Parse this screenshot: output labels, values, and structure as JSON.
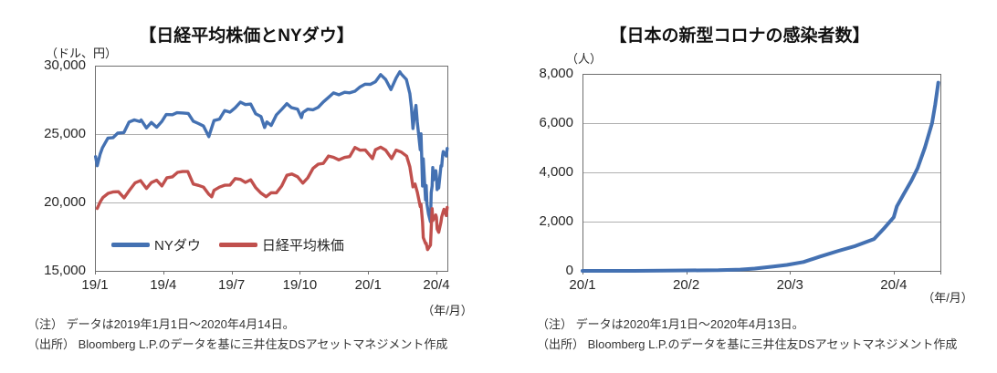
{
  "chart_data": [
    {
      "type": "line",
      "title": "【日経平均株価とNYダウ】",
      "unit_label": "（ドル、円）",
      "axis_unit_label": "（年/月）",
      "ylim": [
        15000,
        30000
      ],
      "y_tick_values": [
        30000,
        25000,
        20000,
        15000
      ],
      "y_tick_labels": [
        "30,000",
        "25,000",
        "20,000",
        "15,000"
      ],
      "gridline_values": [
        25000,
        20000
      ],
      "x_range": [
        0,
        15.48
      ],
      "x_tick_positions": [
        0,
        3,
        6,
        9,
        12,
        15
      ],
      "x_tick_labels": [
        "19/1",
        "19/4",
        "19/7",
        "19/10",
        "20/1",
        "20/4"
      ],
      "grid": true,
      "legend_position": "inside-bottom-left",
      "note": "（注） データは2019年1月1日～2020年4月14日。",
      "source": "（出所） Bloomberg L.P.のデータを基に三井住友DSアセットマネジメント作成",
      "series": [
        {
          "name": "NYダウ",
          "color": "#4471B2",
          "points": [
            [
              0.03,
              23346
            ],
            [
              0.1,
              22686
            ],
            [
              0.23,
              23531
            ],
            [
              0.33,
              23996
            ],
            [
              0.57,
              24706
            ],
            [
              0.8,
              24737
            ],
            [
              1.0,
              25064
            ],
            [
              1.27,
              25106
            ],
            [
              1.5,
              25883
            ],
            [
              1.73,
              26032
            ],
            [
              1.97,
              25916
            ],
            [
              2.03,
              26026
            ],
            [
              2.26,
              25450
            ],
            [
              2.48,
              25849
            ],
            [
              2.71,
              25502
            ],
            [
              2.94,
              25929
            ],
            [
              3.13,
              26425
            ],
            [
              3.4,
              26412
            ],
            [
              3.6,
              26560
            ],
            [
              3.87,
              26543
            ],
            [
              4.1,
              26505
            ],
            [
              4.32,
              25942
            ],
            [
              4.55,
              25764
            ],
            [
              4.77,
              25586
            ],
            [
              5.0,
              24815
            ],
            [
              5.23,
              25984
            ],
            [
              5.47,
              26090
            ],
            [
              5.7,
              26719
            ],
            [
              5.93,
              26600
            ],
            [
              6.16,
              26922
            ],
            [
              6.39,
              27332
            ],
            [
              6.61,
              27154
            ],
            [
              6.84,
              27192
            ],
            [
              7.06,
              26485
            ],
            [
              7.29,
              26287
            ],
            [
              7.45,
              25479
            ],
            [
              7.55,
              25886
            ],
            [
              7.74,
              25629
            ],
            [
              7.97,
              26403
            ],
            [
              8.2,
              26797
            ],
            [
              8.43,
              27219
            ],
            [
              8.63,
              26935
            ],
            [
              8.9,
              26820
            ],
            [
              9.07,
              26201
            ],
            [
              9.13,
              26574
            ],
            [
              9.35,
              26817
            ],
            [
              9.58,
              26770
            ],
            [
              9.81,
              26958
            ],
            [
              10.03,
              27347
            ],
            [
              10.26,
              27681
            ],
            [
              10.48,
              28005
            ],
            [
              10.71,
              27876
            ],
            [
              10.97,
              28051
            ],
            [
              11.19,
              28015
            ],
            [
              11.42,
              28135
            ],
            [
              11.65,
              28455
            ],
            [
              11.87,
              28645
            ],
            [
              12.1,
              28635
            ],
            [
              12.32,
              28824
            ],
            [
              12.55,
              29348
            ],
            [
              12.77,
              28990
            ],
            [
              13.0,
              28256
            ],
            [
              13.23,
              29103
            ],
            [
              13.39,
              29551
            ],
            [
              13.45,
              29398
            ],
            [
              13.68,
              28992
            ],
            [
              13.83,
              27960
            ],
            [
              13.9,
              26957
            ],
            [
              13.97,
              25409
            ],
            [
              14.06,
              26703
            ],
            [
              14.1,
              27090
            ],
            [
              14.16,
              25864
            ],
            [
              14.29,
              23851
            ],
            [
              14.32,
              25018
            ],
            [
              14.35,
              23553
            ],
            [
              14.39,
              21200
            ],
            [
              14.42,
              23185
            ],
            [
              14.52,
              20188
            ],
            [
              14.55,
              21237
            ],
            [
              14.58,
              19899
            ],
            [
              14.65,
              19174
            ],
            [
              14.74,
              18592
            ],
            [
              14.77,
              20705
            ],
            [
              14.81,
              21200
            ],
            [
              14.84,
              22552
            ],
            [
              14.87,
              21637
            ],
            [
              14.97,
              22327
            ],
            [
              15.0,
              21917
            ],
            [
              15.03,
              20943
            ],
            [
              15.07,
              21413
            ],
            [
              15.1,
              21053
            ],
            [
              15.2,
              22680
            ],
            [
              15.23,
              22654
            ],
            [
              15.27,
              23434
            ],
            [
              15.3,
              23719
            ],
            [
              15.43,
              23390
            ],
            [
              15.47,
              23949
            ]
          ]
        },
        {
          "name": "日経平均株価",
          "color": "#C0504D",
          "points": [
            [
              0.1,
              19562
            ],
            [
              0.23,
              20039
            ],
            [
              0.35,
              20360
            ],
            [
              0.58,
              20666
            ],
            [
              0.81,
              20774
            ],
            [
              1.03,
              20788
            ],
            [
              1.28,
              20333
            ],
            [
              1.52,
              20901
            ],
            [
              1.76,
              21426
            ],
            [
              2.0,
              21603
            ],
            [
              2.26,
              21026
            ],
            [
              2.48,
              21451
            ],
            [
              2.71,
              21627
            ],
            [
              2.94,
              21206
            ],
            [
              3.16,
              21808
            ],
            [
              3.4,
              21871
            ],
            [
              3.63,
              22201
            ],
            [
              3.85,
              22259
            ],
            [
              4.08,
              22258
            ],
            [
              4.32,
              21345
            ],
            [
              4.55,
              21250
            ],
            [
              4.77,
              21117
            ],
            [
              5.0,
              20601
            ],
            [
              5.13,
              20410
            ],
            [
              5.23,
              20885
            ],
            [
              5.47,
              21117
            ],
            [
              5.7,
              21259
            ],
            [
              5.93,
              21276
            ],
            [
              6.16,
              21746
            ],
            [
              6.39,
              21686
            ],
            [
              6.61,
              21467
            ],
            [
              6.84,
              21658
            ],
            [
              7.06,
              21087
            ],
            [
              7.29,
              20685
            ],
            [
              7.52,
              20419
            ],
            [
              7.74,
              20711
            ],
            [
              7.97,
              20704
            ],
            [
              8.2,
              21200
            ],
            [
              8.43,
              21988
            ],
            [
              8.65,
              22079
            ],
            [
              8.9,
              21879
            ],
            [
              9.13,
              21410
            ],
            [
              9.35,
              21799
            ],
            [
              9.58,
              22493
            ],
            [
              9.81,
              22800
            ],
            [
              10.03,
              22851
            ],
            [
              10.26,
              23392
            ],
            [
              10.48,
              23303
            ],
            [
              10.71,
              23113
            ],
            [
              10.97,
              23294
            ],
            [
              11.19,
              23354
            ],
            [
              11.42,
              24023
            ],
            [
              11.65,
              23817
            ],
            [
              11.87,
              23838
            ],
            [
              12.19,
              23205
            ],
            [
              12.32,
              23851
            ],
            [
              12.55,
              24041
            ],
            [
              12.77,
              23827
            ],
            [
              13.03,
              23205
            ],
            [
              13.23,
              23828
            ],
            [
              13.45,
              23688
            ],
            [
              13.69,
              23387
            ],
            [
              13.83,
              22605
            ],
            [
              13.97,
              21143
            ],
            [
              14.06,
              21344
            ],
            [
              14.16,
              20750
            ],
            [
              14.29,
              19699
            ],
            [
              14.32,
              19867
            ],
            [
              14.39,
              18560
            ],
            [
              14.42,
              17431
            ],
            [
              14.52,
              17002
            ],
            [
              14.55,
              17012
            ],
            [
              14.61,
              16553
            ],
            [
              14.74,
              16888
            ],
            [
              14.77,
              18092
            ],
            [
              14.81,
              19547
            ],
            [
              14.84,
              18665
            ],
            [
              14.97,
              19085
            ],
            [
              15.0,
              18917
            ],
            [
              15.03,
              18065
            ],
            [
              15.1,
              17820
            ],
            [
              15.2,
              18576
            ],
            [
              15.23,
              18950
            ],
            [
              15.3,
              19346
            ],
            [
              15.33,
              19499
            ],
            [
              15.43,
              19043
            ],
            [
              15.47,
              19638
            ]
          ]
        }
      ]
    },
    {
      "type": "line",
      "title": "【日本の新型コロナの感染者数】",
      "unit_label": "（人）",
      "axis_unit_label": "（年/月）",
      "ylim": [
        0,
        8000
      ],
      "y_tick_values": [
        8000,
        6000,
        4000,
        2000,
        0
      ],
      "y_tick_labels": [
        "8,000",
        "6,000",
        "4,000",
        "2,000",
        "0"
      ],
      "gridline_values": [
        6000,
        4000,
        2000
      ],
      "x_range": [
        0,
        3.45
      ],
      "x_tick_positions": [
        0,
        1,
        2,
        3
      ],
      "x_tick_labels": [
        "20/1",
        "20/2",
        "20/3",
        "20/4"
      ],
      "grid": true,
      "legend_position": "none",
      "note": "（注） データは2020年1月1日～2020年4月13日。",
      "source": "（出所） Bloomberg L.P.のデータを基に三井住友DSアセットマネジメント作成",
      "series": [
        {
          "color": "#4471B2",
          "points": [
            [
              0,
              0
            ],
            [
              0.5,
              1
            ],
            [
              0.77,
              8
            ],
            [
              1.0,
              17
            ],
            [
              1.31,
              26
            ],
            [
              1.52,
              53
            ],
            [
              1.66,
              94
            ],
            [
              1.83,
              170
            ],
            [
              1.97,
              241
            ],
            [
              2.13,
              360
            ],
            [
              2.29,
              581
            ],
            [
              2.47,
              814
            ],
            [
              2.63,
              1007
            ],
            [
              2.81,
              1292
            ],
            [
              2.9,
              1693
            ],
            [
              3.0,
              2178
            ],
            [
              3.03,
              2617
            ],
            [
              3.1,
              3139
            ],
            [
              3.17,
              3654
            ],
            [
              3.23,
              4168
            ],
            [
              3.3,
              5002
            ],
            [
              3.37,
              6005
            ],
            [
              3.4,
              6748
            ],
            [
              3.43,
              7645
            ]
          ]
        }
      ]
    }
  ]
}
